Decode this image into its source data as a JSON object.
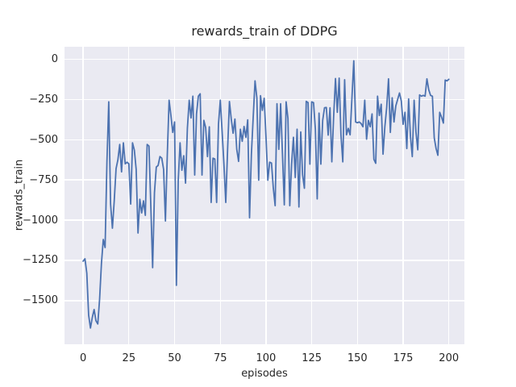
{
  "chart_data": {
    "type": "line",
    "title": "rewards_train of DDPG",
    "xlabel": "episodes",
    "ylabel": "rewards_train",
    "x_tick_values": [
      0,
      25,
      50,
      75,
      100,
      125,
      150,
      175,
      200
    ],
    "x_tick_labels": [
      "0",
      "25",
      "50",
      "75",
      "100",
      "125",
      "150",
      "175",
      "200"
    ],
    "y_tick_values": [
      0,
      -250,
      -500,
      -750,
      -1000,
      -1250,
      -1500
    ],
    "y_tick_labels": [
      "0",
      "−250",
      "−500",
      "−750",
      "−1000",
      "−1250",
      "−1500"
    ],
    "xlim": [
      -10.2,
      208.5
    ],
    "ylim": [
      -1771,
      77
    ],
    "grid": true,
    "legend": false,
    "colors": {
      "figure_bg": "#ffffff",
      "axes_bg": "#eaeaf2",
      "grid": "#ffffff",
      "line": "#4c72b0",
      "text": "#262626"
    },
    "series": [
      {
        "name": "rewards_train",
        "x_start": 0,
        "x_step": 1,
        "values": [
          -1255,
          -1240,
          -1330,
          -1590,
          -1670,
          -1605,
          -1555,
          -1625,
          -1645,
          -1490,
          -1270,
          -1120,
          -1170,
          -640,
          -265,
          -900,
          -1050,
          -880,
          -680,
          -625,
          -530,
          -700,
          -520,
          -650,
          -640,
          -650,
          -900,
          -520,
          -565,
          -685,
          -1080,
          -870,
          -955,
          -880,
          -970,
          -530,
          -540,
          -910,
          -1295,
          -830,
          -670,
          -660,
          -605,
          -615,
          -685,
          -1005,
          -600,
          -255,
          -350,
          -455,
          -390,
          -1405,
          -755,
          -520,
          -690,
          -600,
          -770,
          -430,
          -255,
          -365,
          -230,
          -720,
          -340,
          -230,
          -215,
          -720,
          -380,
          -425,
          -605,
          -420,
          -890,
          -615,
          -620,
          -890,
          -405,
          -255,
          -450,
          -655,
          -890,
          -560,
          -263,
          -372,
          -460,
          -372,
          -560,
          -635,
          -435,
          -510,
          -418,
          -485,
          -377,
          -985,
          -593,
          -360,
          -135,
          -240,
          -752,
          -227,
          -318,
          -243,
          -485,
          -752,
          -640,
          -645,
          -802,
          -910,
          -277,
          -560,
          -277,
          -590,
          -905,
          -265,
          -368,
          -910,
          -652,
          -485,
          -735,
          -435,
          -918,
          -452,
          -718,
          -802,
          -262,
          -270,
          -652,
          -265,
          -270,
          -435,
          -868,
          -335,
          -652,
          -380,
          -302,
          -300,
          -472,
          -302,
          -638,
          -355,
          -120,
          -330,
          -118,
          -472,
          -638,
          -128,
          -470,
          -430,
          -470,
          -240,
          -10,
          -390,
          -395,
          -390,
          -400,
          -420,
          -255,
          -497,
          -380,
          -420,
          -340,
          -622,
          -647,
          -230,
          -350,
          -280,
          -590,
          -420,
          -300,
          -122,
          -455,
          -240,
          -390,
          -290,
          -250,
          -210,
          -260,
          -405,
          -330,
          -555,
          -247,
          -480,
          -605,
          -255,
          -450,
          -563,
          -222,
          -230,
          -225,
          -230,
          -122,
          -190,
          -225,
          -230,
          -488,
          -555,
          -597,
          -330,
          -360,
          -397,
          -130,
          -135,
          -125
        ]
      }
    ]
  }
}
